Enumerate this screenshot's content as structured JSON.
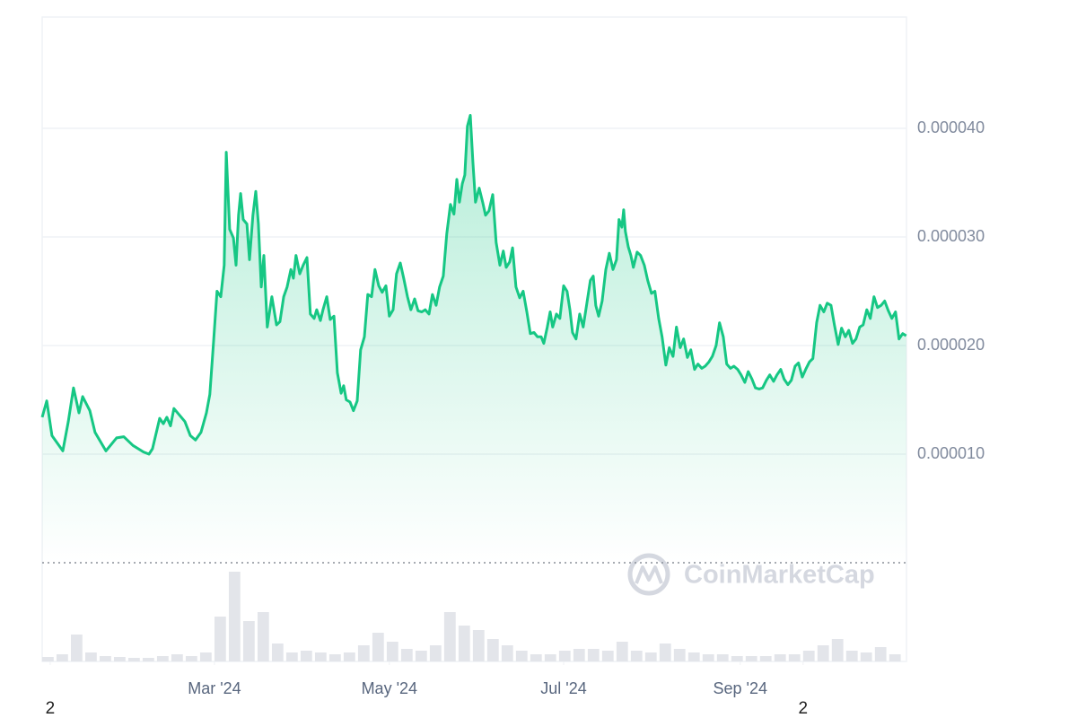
{
  "chart_data": {
    "type": "area",
    "color": "#16c784",
    "x": [
      0,
      1.6,
      3.4,
      7.2,
      9.1,
      10.9,
      12.8,
      14.1,
      16.6,
      18.4,
      22.2,
      25.9,
      28.4,
      31.6,
      35.3,
      37.2,
      38.4,
      40.9,
      42.2,
      43.4,
      44.7,
      45.9,
      49.7,
      51.6,
      53.4,
      55.3,
      57.2,
      58.4,
      59.7,
      60.9,
      62.2,
      63.4,
      64.1,
      65.3,
      66.6,
      67.5,
      68.4,
      69.1,
      70,
      71.3,
      72.2,
      73.4,
      74.4,
      75.3,
      76.3,
      77.2,
      78.4,
      80,
      81.6,
      82.8,
      84.1,
      85.3,
      86.6,
      87.5,
      88.4,
      89.7,
      90.9,
      92.2,
      93.4,
      94.7,
      95.6,
      96.9,
      97.8,
      99.1,
      100.3,
      101.6,
      102.8,
      104.1,
      105,
      105.9,
      107.2,
      108.4,
      109.7,
      110.9,
      112.2,
      113.4,
      114.7,
      115.9,
      117.2,
      118.4,
      119.7,
      120.9,
      122.2,
      123.4,
      124.7,
      125.9,
      127.2,
      128.4,
      129.7,
      130.9,
      132.2,
      133.4,
      134.7,
      135.9,
      137.2,
      138.4,
      139.7,
      140.9,
      142.2,
      143.4,
      144.4,
      145.3,
      146.3,
      147.2,
      148.1,
      149.1,
      150,
      150.9,
      152.2,
      153.4,
      154.4,
      155.6,
      156.9,
      158.1,
      159.4,
      160.6,
      161.6,
      162.8,
      163.8,
      165,
      166.3,
      167.5,
      168.8,
      170,
      171.3,
      172.5,
      173.8,
      174.7,
      175.9,
      176.9,
      177.8,
      179.1,
      180.3,
      181.6,
      182.8,
      183.8,
      184.7,
      185.9,
      187.2,
      188.4,
      189.7,
      190.9,
      191.9,
      192.8,
      193.8,
      195,
      196.3,
      197.5,
      198.8,
      200,
      200.9,
      201.9,
      202.5,
      203.1,
      204.1,
      205,
      205.9,
      207.2,
      208.4,
      209.7,
      210.9,
      212.2,
      213.4,
      214.7,
      215.9,
      217.2,
      218.4,
      219.7,
      220.9,
      222.2,
      223.4,
      224.7,
      225.9,
      227.2,
      228.4,
      229.7,
      230.9,
      232.2,
      233.4,
      234.7,
      235.9,
      237.2,
      238.4,
      239.7,
      240.9,
      242.2,
      243.4,
      244.7,
      245.9,
      247.2,
      248.4,
      249.7,
      250.9,
      252.2,
      253.4,
      254.7,
      255.9,
      257.2,
      258.4,
      259.7,
      260.9,
      262.2,
      263.4,
      264.7,
      265.9,
      267.2,
      268.4,
      269.7,
      270.9,
      272.2,
      273.4,
      274.7,
      275.9,
      277.2,
      278.4,
      279.7,
      280.9,
      282.2,
      283.4,
      284.7,
      285.9,
      287.2,
      288.4,
      289.7,
      290.9,
      292.2,
      293.4,
      294.7,
      295.9,
      297.2,
      298.4,
      299.7,
      300.9
    ],
    "values": [
      1.34e-05,
      1.49e-05,
      1.17e-05,
      1.03e-05,
      1.3e-05,
      1.61e-05,
      1.38e-05,
      1.53e-05,
      1.4e-05,
      1.2e-05,
      1.03e-05,
      1.15e-05,
      1.16e-05,
      1.08e-05,
      1.02e-05,
      1e-05,
      1.05e-05,
      1.33e-05,
      1.28e-05,
      1.34e-05,
      1.26e-05,
      1.42e-05,
      1.3e-05,
      1.17e-05,
      1.13e-05,
      1.2e-05,
      1.38e-05,
      1.55e-05,
      2.04e-05,
      2.5e-05,
      2.45e-05,
      2.74e-05,
      3.78e-05,
      3.07e-05,
      2.99e-05,
      2.74e-05,
      3.2e-05,
      3.4e-05,
      3.16e-05,
      3.12e-05,
      2.79e-05,
      3.2e-05,
      3.42e-05,
      3.12e-05,
      2.54e-05,
      2.83e-05,
      2.17e-05,
      2.45e-05,
      2.19e-05,
      2.22e-05,
      2.45e-05,
      2.54e-05,
      2.7e-05,
      2.62e-05,
      2.83e-05,
      2.66e-05,
      2.74e-05,
      2.81e-05,
      2.29e-05,
      2.25e-05,
      2.33e-05,
      2.23e-05,
      2.33e-05,
      2.45e-05,
      2.24e-05,
      2.27e-05,
      1.75e-05,
      1.56e-05,
      1.63e-05,
      1.5e-05,
      1.48e-05,
      1.4e-05,
      1.49e-05,
      1.96e-05,
      2.08e-05,
      2.47e-05,
      2.45e-05,
      2.7e-05,
      2.55e-05,
      2.49e-05,
      2.55e-05,
      2.27e-05,
      2.33e-05,
      2.66e-05,
      2.76e-05,
      2.62e-05,
      2.45e-05,
      2.33e-05,
      2.43e-05,
      2.32e-05,
      2.31e-05,
      2.33e-05,
      2.29e-05,
      2.47e-05,
      2.37e-05,
      2.54e-05,
      2.64e-05,
      3.03e-05,
      3.3e-05,
      3.21e-05,
      3.53e-05,
      3.32e-05,
      3.49e-05,
      3.57e-05,
      4.02e-05,
      4.12e-05,
      3.69e-05,
      3.32e-05,
      3.45e-05,
      3.32e-05,
      3.2e-05,
      3.24e-05,
      3.39e-05,
      2.95e-05,
      2.74e-05,
      2.87e-05,
      2.72e-05,
      2.77e-05,
      2.9e-05,
      2.54e-05,
      2.44e-05,
      2.5e-05,
      2.31e-05,
      2.11e-05,
      2.12e-05,
      2.08e-05,
      2.08e-05,
      2.02e-05,
      2.17e-05,
      2.31e-05,
      2.17e-05,
      2.29e-05,
      2.25e-05,
      2.55e-05,
      2.5e-05,
      2.33e-05,
      2.12e-05,
      2.06e-05,
      2.29e-05,
      2.17e-05,
      2.39e-05,
      2.6e-05,
      2.64e-05,
      2.37e-05,
      2.27e-05,
      2.41e-05,
      2.7e-05,
      2.85e-05,
      2.7e-05,
      2.79e-05,
      3.16e-05,
      3.09e-05,
      3.25e-05,
      3.05e-05,
      2.91e-05,
      2.83e-05,
      2.72e-05,
      2.86e-05,
      2.83e-05,
      2.74e-05,
      2.6e-05,
      2.48e-05,
      2.5e-05,
      2.25e-05,
      2.08e-05,
      1.82e-05,
      1.98e-05,
      1.9e-05,
      2.17e-05,
      1.98e-05,
      2.06e-05,
      1.89e-05,
      1.96e-05,
      1.78e-05,
      1.83e-05,
      1.79e-05,
      1.81e-05,
      1.85e-05,
      1.9e-05,
      2e-05,
      2.21e-05,
      2.08e-05,
      1.83e-05,
      1.79e-05,
      1.81e-05,
      1.78e-05,
      1.73e-05,
      1.66e-05,
      1.76e-05,
      1.69e-05,
      1.61e-05,
      1.6e-05,
      1.61e-05,
      1.68e-05,
      1.73e-05,
      1.67e-05,
      1.73e-05,
      1.78e-05,
      1.69e-05,
      1.64e-05,
      1.68e-05,
      1.81e-05,
      1.84e-05,
      1.71e-05,
      1.78e-05,
      1.85e-05,
      1.88e-05,
      2.21e-05,
      2.37e-05,
      2.31e-05,
      2.39e-05,
      2.37e-05,
      2.19e-05,
      2.01e-05,
      2.16e-05,
      2.08e-05,
      2.14e-05,
      2.02e-05,
      2.06e-05,
      2.17e-05,
      2.19e-05,
      2.33e-05,
      2.25e-05,
      2.45e-05,
      2.35e-05,
      2.37e-05,
      2.41e-05,
      2.32e-05,
      2.25e-05,
      2.31e-05,
      2.06e-05,
      2.11e-05,
      2.09e-05
    ],
    "xlim": [
      0,
      301
    ],
    "xticks": [
      {
        "value": 60,
        "label": "Mar '24"
      },
      {
        "value": 120.9,
        "label": "May '24"
      },
      {
        "value": 181.6,
        "label": "Jul '24"
      },
      {
        "value": 243.1,
        "label": "Sep '24"
      }
    ],
    "xticks2": [
      {
        "value": 2.8,
        "label": "2"
      },
      {
        "value": 265,
        "label": "2"
      }
    ],
    "ylim": [
      0,
      5e-05
    ],
    "yticks": [
      {
        "value": 1e-05,
        "label": "0.000010"
      },
      {
        "value": 2e-05,
        "label": "0.000020"
      },
      {
        "value": 3e-05,
        "label": "0.000030"
      },
      {
        "value": 4e-05,
        "label": "0.000040"
      }
    ],
    "grid": true,
    "watermark": "CoinMarketCap",
    "volume": {
      "color": "#e3e5ea",
      "x": [
        0,
        5,
        10,
        15,
        20,
        25,
        30,
        35,
        40,
        45,
        50,
        55,
        60,
        65,
        70,
        75,
        80,
        85,
        90,
        95,
        100,
        105,
        110,
        115,
        120,
        125,
        130,
        135,
        140,
        145,
        150,
        155,
        160,
        165,
        170,
        175,
        180,
        185,
        190,
        195,
        200,
        205,
        210,
        215,
        220,
        225,
        230,
        235,
        240,
        245,
        250,
        255,
        260,
        265,
        270,
        275,
        280,
        285,
        290,
        295
      ],
      "values": [
        5,
        8,
        30,
        10,
        6,
        5,
        4,
        4,
        6,
        8,
        6,
        10,
        50,
        100,
        45,
        55,
        20,
        10,
        12,
        10,
        8,
        10,
        18,
        32,
        22,
        14,
        12,
        18,
        55,
        40,
        35,
        25,
        18,
        12,
        8,
        8,
        12,
        14,
        14,
        12,
        22,
        12,
        10,
        20,
        14,
        10,
        8,
        8,
        6,
        6,
        6,
        8,
        8,
        12,
        18,
        25,
        12,
        10,
        16,
        8
      ]
    }
  }
}
